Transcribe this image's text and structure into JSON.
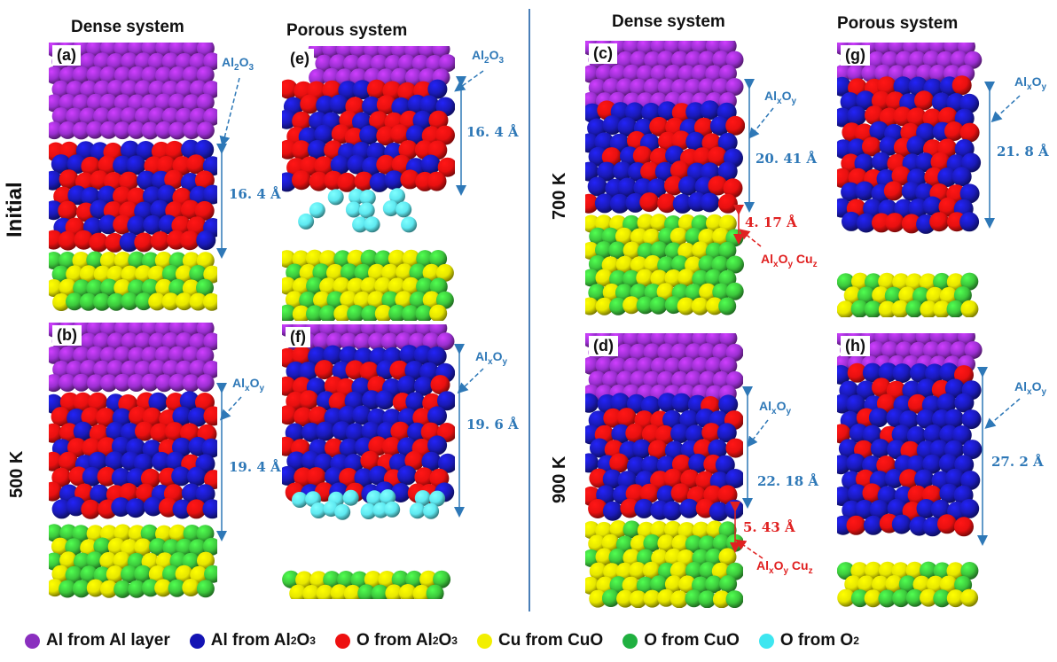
{
  "columns": {
    "dense_left": "Dense system",
    "porous_left": "Porous system",
    "dense_right": "Dense system",
    "porous_right": "Porous system"
  },
  "rows": {
    "initial": "Initial",
    "k500": "500 K",
    "k700": "700 K",
    "k900": "900 K"
  },
  "panels": {
    "a": "(a)",
    "b": "(b)",
    "c": "(c)",
    "d": "(d)",
    "e": "(e)",
    "f": "(f)",
    "g": "(g)",
    "h": "(h)"
  },
  "annotations": {
    "a_phase": "Al",
    "a_phase_sub1": "2",
    "a_phase_mid": "O",
    "a_phase_sub2": "3",
    "a_thickness": "16. 4 Å",
    "e_thickness": "16. 4 Å",
    "b_thickness": "19. 4 Å",
    "f_thickness": "19. 6 Å",
    "c_thickness": "20. 41 Å",
    "c_interface": "4. 17 Å",
    "g_thickness": "21. 8 Å",
    "d_thickness": "22. 18 Å",
    "d_interface": "5. 43 Å",
    "h_thickness": "27. 2 Å",
    "alxoy_al": "Al",
    "alxoy_x": "x",
    "alxoy_o": "O",
    "alxoy_y": "y",
    "cu": "Cu",
    "cu_z": "z"
  },
  "legend": [
    {
      "text": "Al from Al layer",
      "color": "#8a2fbf"
    },
    {
      "text": "Al from Al",
      "sub1": "2",
      "mid": "O",
      "sub2": "3",
      "color": "#1414b4"
    },
    {
      "text": "O from Al",
      "sub1": "2",
      "mid": "O",
      "sub2": "3",
      "color": "#ee1010"
    },
    {
      "text": "Cu from CuO",
      "color": "#f2ef00"
    },
    {
      "text": "O from CuO",
      "color": "#20b040"
    },
    {
      "text": "O from O",
      "sub1": "2",
      "color": "#3ee6f0"
    }
  ],
  "colors": {
    "al_layer": "#9a2fd0",
    "al_oxide": "#1a1ab8",
    "o_oxide": "#e81010",
    "cu": "#e6e600",
    "o_cuo": "#3cc83c",
    "o2": "#5ee8f0",
    "blue_text": "#2e78b7",
    "red_text": "#e02020"
  }
}
